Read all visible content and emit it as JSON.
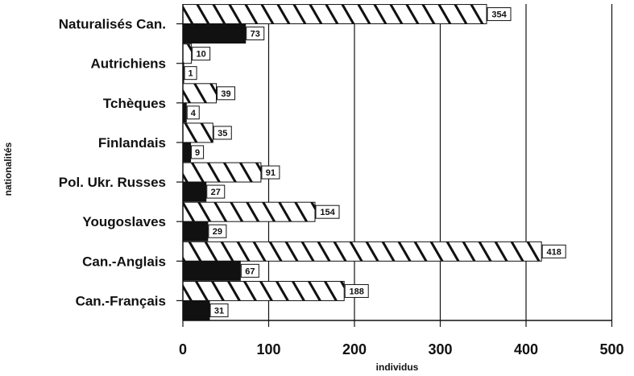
{
  "chart_data": {
    "type": "bar",
    "orientation": "horizontal",
    "categories": [
      "Naturalisés Can.",
      "Autrichiens",
      "Tchèques",
      "Finlandais",
      "Pol. Ukr. Russes",
      "Yougoslaves",
      "Can.-Anglais",
      "Can.-Français"
    ],
    "series": [
      {
        "values": [
          354,
          10,
          39,
          35,
          91,
          154,
          418,
          188
        ],
        "pattern": "hatched"
      },
      {
        "values": [
          73,
          1,
          4,
          9,
          27,
          29,
          67,
          31
        ],
        "pattern": "solid",
        "color": "#111111"
      }
    ],
    "xlabel": "individus",
    "ylabel": "nationalités",
    "xlim": [
      0,
      500
    ],
    "xticks": [
      "0",
      "100",
      "200",
      "300",
      "400",
      "500"
    ],
    "grid": "vertical",
    "legend": "none"
  }
}
